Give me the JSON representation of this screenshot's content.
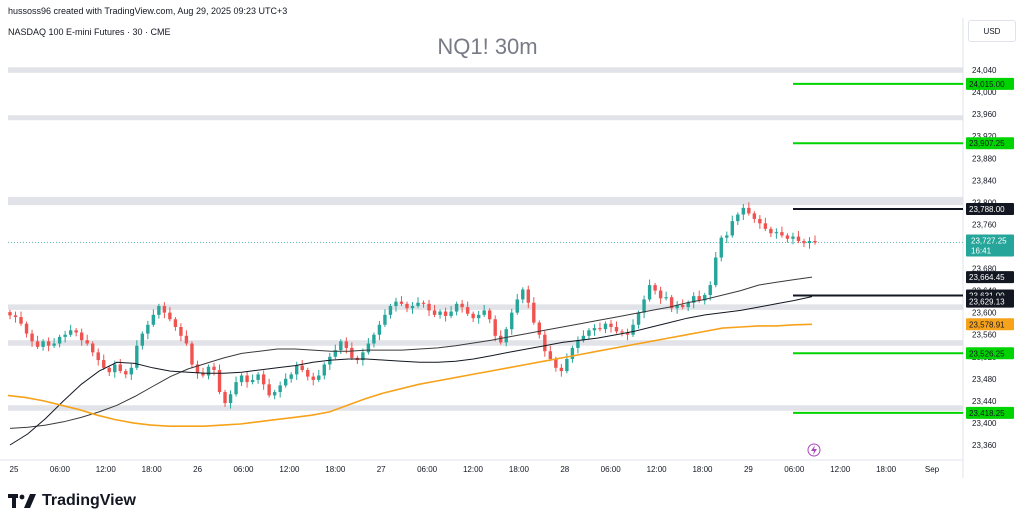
{
  "header": {
    "author_line": "hussoss96 created with TradingView.com, Aug 29, 2025 09:23 UTC+3",
    "symbol_line": "NASDAQ 100 E-mini Futures · 30 · CME"
  },
  "watermark": "NQ1! 30m",
  "currency": "USD",
  "brand": "TradingView",
  "colors": {
    "up": "#26a69a",
    "down": "#ef5350",
    "ma_slow": "#f7a21b",
    "support": "#00d400",
    "resistance": "#131722",
    "zone": "#dcdee4",
    "last_price": "#26a69a"
  },
  "chart_data": {
    "type": "candlestick",
    "symbol": "NQ1!",
    "timeframe": "30m",
    "ylim": [
      23340,
      24080
    ],
    "x_ticks": [
      "25",
      "06:00",
      "12:00",
      "18:00",
      "26",
      "06:00",
      "12:00",
      "18:00",
      "27",
      "06:00",
      "12:00",
      "18:00",
      "28",
      "06:00",
      "12:00",
      "18:00",
      "29",
      "06:00",
      "12:00",
      "18:00",
      "Sep"
    ],
    "y_ticks": [
      24040,
      24000,
      23960,
      23920,
      23880,
      23840,
      23800,
      23760,
      23680,
      23640,
      23600,
      23560,
      23520,
      23480,
      23440,
      23400,
      23360
    ],
    "zones": [
      [
        24035,
        24045
      ],
      [
        23950,
        23958
      ],
      [
        23795,
        23810
      ],
      [
        23605,
        23615
      ],
      [
        23540,
        23550
      ],
      [
        23422,
        23432
      ]
    ],
    "support_levels": [
      {
        "label": "24,015.00",
        "value": 24015
      },
      {
        "label": "23,907.25",
        "value": 23907.25
      },
      {
        "label": "23,526.25",
        "value": 23526.25
      },
      {
        "label": "23,418.25",
        "value": 23418.25
      }
    ],
    "resistance_levels": [
      {
        "label": "23,788.00",
        "value": 23788
      },
      {
        "label": "23,631.00",
        "value": 23631
      }
    ],
    "price_tags": [
      {
        "label": "23,664.45",
        "value": 23664.45,
        "style": "dark"
      },
      {
        "label": "23,629.13",
        "value": 23629.13,
        "style": "dark"
      },
      {
        "label": "23,578.91",
        "value": 23578.91,
        "style": "orange"
      }
    ],
    "last_price": {
      "label": "23,727.25",
      "value": 23727.25,
      "countdown": "16:41"
    },
    "closes": [
      23595,
      23592,
      23580,
      23562,
      23548,
      23538,
      23548,
      23540,
      23544,
      23556,
      23560,
      23568,
      23564,
      23550,
      23544,
      23528,
      23514,
      23500,
      23492,
      23506,
      23494,
      23488,
      23500,
      23540,
      23562,
      23578,
      23596,
      23612,
      23600,
      23588,
      23574,
      23558,
      23544,
      23506,
      23490,
      23486,
      23502,
      23496,
      23456,
      23436,
      23452,
      23474,
      23486,
      23474,
      23478,
      23488,
      23470,
      23450,
      23456,
      23468,
      23480,
      23488,
      23504,
      23496,
      23484,
      23478,
      23486,
      23506,
      23520,
      23532,
      23548,
      23536,
      23518,
      23514,
      23528,
      23544,
      23560,
      23578,
      23596,
      23612,
      23620,
      23616,
      23608,
      23612,
      23618,
      23616,
      23604,
      23596,
      23602,
      23594,
      23602,
      23616,
      23610,
      23598,
      23590,
      23596,
      23604,
      23588,
      23558,
      23546,
      23570,
      23600,
      23624,
      23642,
      23618,
      23582,
      23560,
      23530,
      23516,
      23500,
      23494,
      23516,
      23536,
      23550,
      23558,
      23568,
      23572,
      23570,
      23580,
      23574,
      23566,
      23564,
      23560,
      23578,
      23600,
      23624,
      23650,
      23640,
      23626,
      23628,
      23608,
      23614,
      23610,
      23618,
      23630,
      23622,
      23632,
      23650,
      23700,
      23736,
      23740,
      23766,
      23778,
      23790,
      23780,
      23770,
      23762,
      23752,
      23744,
      23746,
      23740,
      23734,
      23738,
      23730,
      23726,
      23730,
      23727.25
    ],
    "moving_averages": [
      {
        "name": "MA-short",
        "color": "#3a3a3a",
        "values": [
          23390,
          23392,
          23396,
          23402,
          23410,
          23420,
          23432,
          23448,
          23466,
          23484,
          23498,
          23508,
          23518,
          23526,
          23530,
          23534,
          23534,
          23532,
          23530,
          23530,
          23532,
          23532,
          23532,
          23534,
          23536,
          23540,
          23545,
          23550,
          23556,
          23562,
          23568,
          23574,
          23580,
          23586,
          23592,
          23598,
          23604,
          23610,
          23618,
          23624,
          23632,
          23640,
          23650,
          23655,
          23660,
          23664.45
        ]
      },
      {
        "name": "MA-mid",
        "color": "#131722",
        "values": [
          23360,
          23380,
          23408,
          23440,
          23470,
          23494,
          23510,
          23508,
          23500,
          23494,
          23492,
          23490,
          23490,
          23492,
          23496,
          23500,
          23504,
          23510,
          23514,
          23516,
          23516,
          23514,
          23512,
          23510,
          23510,
          23512,
          23516,
          23522,
          23528,
          23534,
          23540,
          23546,
          23550,
          23554,
          23560,
          23566,
          23574,
          23582,
          23590,
          23596,
          23600,
          23604,
          23610,
          23616,
          23622,
          23629.13
        ]
      },
      {
        "name": "MA-long",
        "color": "#f7a21b",
        "values": [
          23450,
          23446,
          23440,
          23432,
          23424,
          23414,
          23406,
          23400,
          23396,
          23394,
          23394,
          23394,
          23396,
          23398,
          23402,
          23406,
          23410,
          23414,
          23420,
          23432,
          23444,
          23454,
          23462,
          23470,
          23476,
          23482,
          23488,
          23494,
          23500,
          23506,
          23512,
          23518,
          23524,
          23530,
          23536,
          23542,
          23548,
          23554,
          23560,
          23566,
          23572,
          23574,
          23576,
          23576,
          23578,
          23578.91
        ]
      }
    ]
  }
}
